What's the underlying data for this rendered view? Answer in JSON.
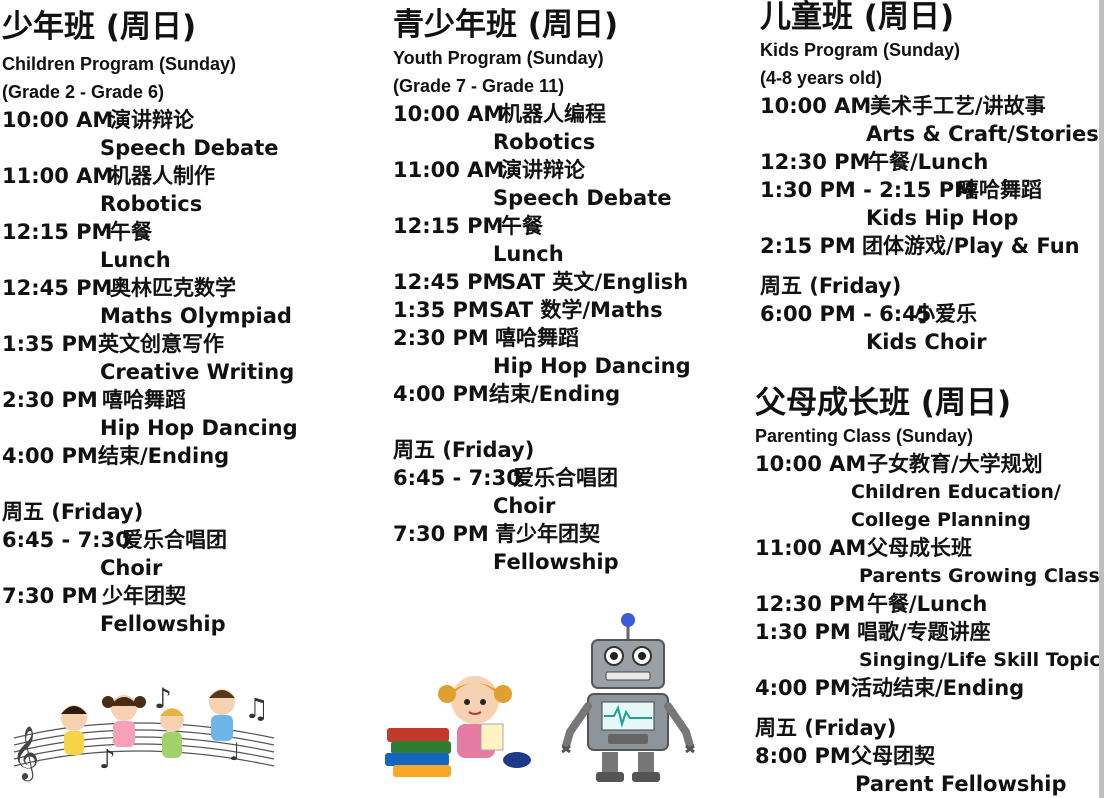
{
  "col1": {
    "title": "少年班 (周日)",
    "subtitle1": "Children Program (Sunday)",
    "subtitle2": "(Grade 2 - Grade 6)",
    "schedule": [
      {
        "time": "10:00 AM",
        "cn": "演讲辩论",
        "en": "Speech Debate"
      },
      {
        "time": "11:00 AM",
        "cn": "机器人制作",
        "en": "Robotics"
      },
      {
        "time": "12:15 PM",
        "cn": "午餐",
        "en": "Lunch"
      },
      {
        "time": "12:45 PM",
        "cn": "奥林匹克数学",
        "en": "Maths Olympiad"
      },
      {
        "time": "1:35 PM",
        "cn": "英文创意写作",
        "en": "Creative Writing"
      },
      {
        "time": "2:30 PM",
        "cn": "嘻哈舞蹈",
        "en": "Hip Hop Dancing"
      },
      {
        "time": "4:00 PM",
        "cn": "结束/Ending"
      }
    ],
    "friday_title": "周五 (Friday)",
    "friday": [
      {
        "time": "6:45 - 7:30",
        "cn": "爱乐合唱团",
        "en": "Choir"
      },
      {
        "time": "7:30 PM",
        "cn": "少年团契",
        "en": "Fellowship"
      }
    ]
  },
  "col2": {
    "title": "青少年班 (周日)",
    "subtitle1": "Youth Program (Sunday)",
    "subtitle2": "(Grade 7 - Grade 11)",
    "schedule": [
      {
        "time": "10:00 AM",
        "cn": "机器人编程",
        "en": "Robotics"
      },
      {
        "time": "11:00 AM",
        "cn": "演讲辩论",
        "en": "Speech Debate"
      },
      {
        "time": "12:15 PM",
        "cn": "午餐",
        "en": "Lunch"
      },
      {
        "time": "12:45 PM",
        "cn": "SAT 英文/English"
      },
      {
        "time": "1:35 PM",
        "cn": "SAT 数学/Maths"
      },
      {
        "time": "2:30 PM",
        "cn": "嘻哈舞蹈",
        "en": "Hip Hop Dancing"
      },
      {
        "time": "4:00 PM",
        "cn": "结束/Ending"
      }
    ],
    "friday_title": "周五 (Friday)",
    "friday": [
      {
        "time": "6:45 - 7:30",
        "cn": "爱乐合唱团",
        "en": "Choir"
      },
      {
        "time": "7:30 PM",
        "cn": "青少年团契",
        "en": "Fellowship"
      }
    ]
  },
  "col3": {
    "title": "儿童班 (周日)",
    "subtitle1": "Kids Program (Sunday)",
    "subtitle2": "(4-8 years old)",
    "schedule": [
      {
        "time": "10:00 AM",
        "cn": "美术手工艺/讲故事",
        "en": "Arts & Craft/Stories"
      },
      {
        "time": "12:30 PM",
        "cn": "午餐/Lunch"
      },
      {
        "time": "1:30 PM - 2:15 PM",
        "cn": "嘻哈舞蹈",
        "en": "Kids Hip Hop"
      },
      {
        "time": "2:15 PM",
        "cn": "团体游戏/Play & Fun"
      }
    ],
    "friday_title": "周五 (Friday)",
    "friday": [
      {
        "time": "6:00 PM - 6:45",
        "cn": "小爱乐",
        "en": "Kids Choir"
      }
    ]
  },
  "col4": {
    "title": "父母成长班 (周日)",
    "subtitle1": "Parenting Class (Sunday)",
    "schedule": [
      {
        "time": "10:00 AM",
        "cn": "子女教育/大学规划",
        "en1": "Children Education/",
        "en2": "College Planning"
      },
      {
        "time": "11:00 AM",
        "cn": "父母成长班",
        "en1": "Parents Growing Classes"
      },
      {
        "time": "12:30 PM",
        "cn": "午餐/Lunch"
      },
      {
        "time": "1:30 PM",
        "cn": "唱歌/专题讲座",
        "en1": "Singing/Life Skill Topics"
      },
      {
        "time": "4:00 PM",
        "cn": "活动结束/Ending"
      }
    ],
    "friday_title": "周五 (Friday)",
    "friday": [
      {
        "time": "8:00 PM",
        "cn": "父母团契",
        "en": "Parent Fellowship"
      }
    ]
  },
  "images": {
    "kids_music": "children-singing-music-notes",
    "girl_books": "girl-reading-books",
    "robot": "robot-illustration"
  }
}
